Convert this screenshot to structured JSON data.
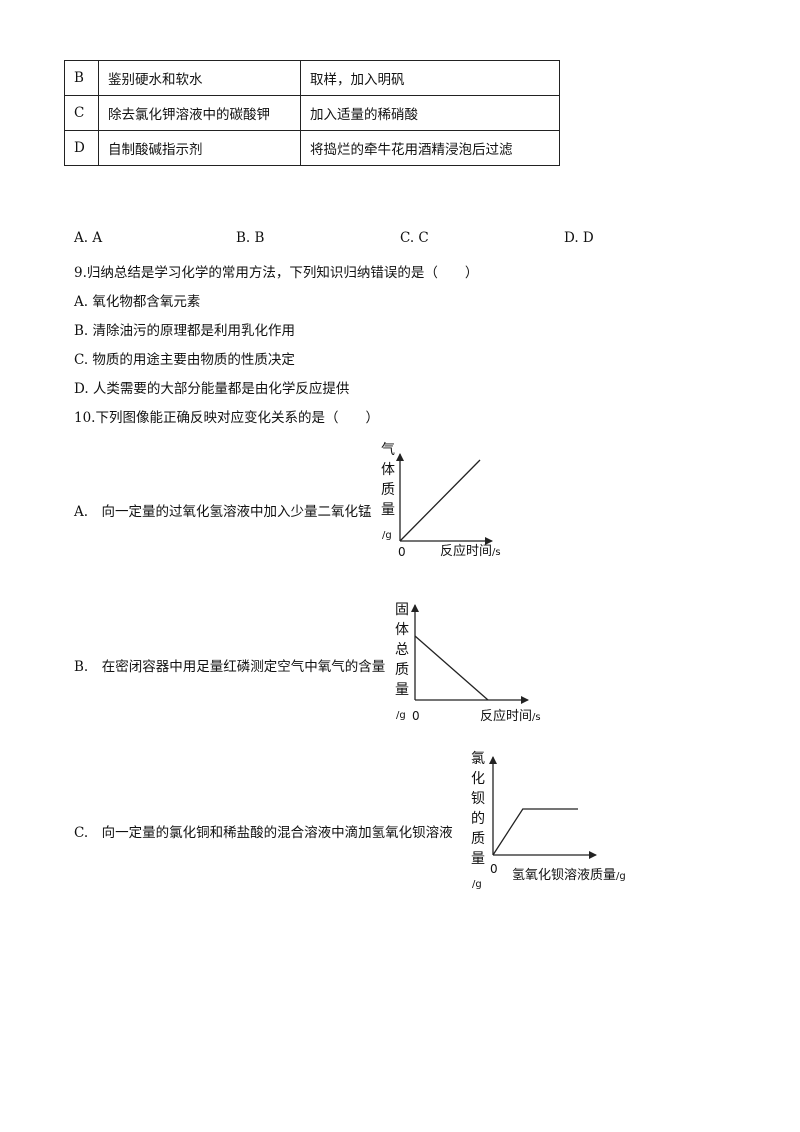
{
  "table": {
    "rows": [
      {
        "letter": "B",
        "purpose": "鉴别硬水和软水",
        "method": "取样，加入明矾"
      },
      {
        "letter": "C",
        "purpose": "除去氯化钾溶液中的碳酸钾",
        "method": "加入适量的稀硝酸"
      },
      {
        "letter": "D",
        "purpose": "自制酸碱指示剂",
        "method": "将捣烂的牵牛花用酒精浸泡后过滤"
      }
    ]
  },
  "q8_options": [
    "A. A",
    "B. B",
    "C. C",
    "D. D"
  ],
  "q9": {
    "stem": "9.归纳总结是学习化学的常用方法，下列知识归纳错误的是（　　）",
    "options": [
      "A. 氧化物都含氧元素",
      "B. 清除油污的原理都是利用乳化作用",
      "C. 物质的用途主要由物质的性质决定",
      "D. 人类需要的大部分能量都是由化学反应提供"
    ]
  },
  "q10": {
    "stem": "10.下列图像能正确反映对应变化关系的是（　　）",
    "option_a": "A.　向一定量的过氧化氢溶液中加入少量二氧化锰",
    "option_b": "B.　在密闭容器中用足量红磷测定空气中氧气的含量",
    "option_c": "C.　向一定量的氯化铜和稀盐酸的混合溶液中滴加氢氧化钡溶液"
  },
  "chart_data": [
    {
      "type": "line",
      "ylabel_chars": [
        "气",
        "体",
        "质",
        "量"
      ],
      "ylabel_unit": "/g",
      "origin": "0",
      "xlabel": "反应时间",
      "xlabel_unit": "/s",
      "x": [
        0,
        1
      ],
      "y": [
        0,
        1
      ]
    },
    {
      "type": "line",
      "ylabel_chars": [
        "固",
        "体",
        "总",
        "质",
        "量"
      ],
      "ylabel_unit": "/g",
      "origin": "0",
      "xlabel": "反应时间",
      "xlabel_unit": "/s",
      "x": [
        0,
        1
      ],
      "y": [
        1,
        0
      ]
    },
    {
      "type": "line",
      "ylabel_chars": [
        "氯",
        "化",
        "钡",
        "的",
        "质",
        "量"
      ],
      "ylabel_unit": "/g",
      "origin": "0",
      "xlabel": "氢氧化钡溶液质量",
      "xlabel_unit": "/g",
      "x": [
        0,
        0.35,
        1
      ],
      "y": [
        0,
        1,
        1
      ]
    }
  ]
}
